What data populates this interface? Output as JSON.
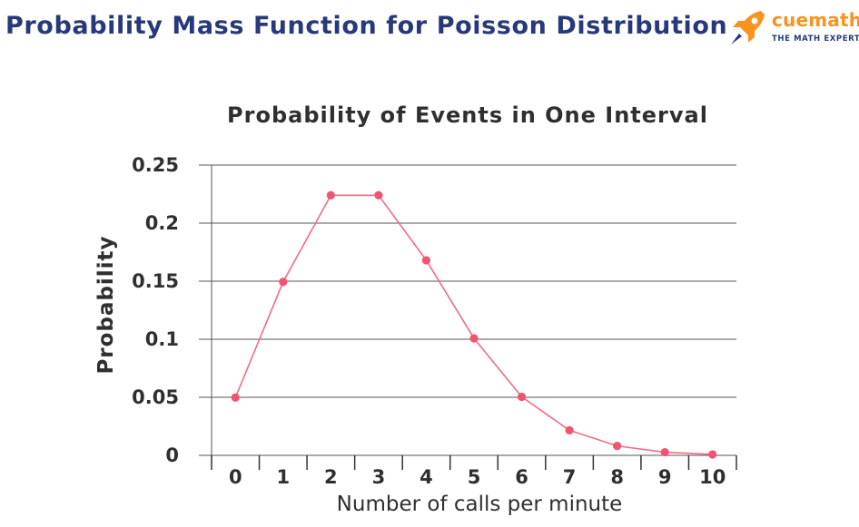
{
  "header": {
    "title": "Probability Mass Function for Poisson Distribution"
  },
  "logo": {
    "brand": "cuemath",
    "tagline": "THE MATH EXPERT",
    "icon": "rocket-icon",
    "brand_color": "#f7931e",
    "tagline_color": "#27397a"
  },
  "chart_data": {
    "type": "line",
    "title": "Probability of Events in One Interval",
    "xlabel": "Number of calls per minute",
    "ylabel": "Probability",
    "x": [
      0,
      1,
      2,
      3,
      4,
      5,
      6,
      7,
      8,
      9,
      10
    ],
    "y": [
      0.0498,
      0.1494,
      0.224,
      0.224,
      0.168,
      0.1008,
      0.0504,
      0.0216,
      0.0081,
      0.0027,
      0.0008
    ],
    "ylim": [
      0,
      0.25
    ],
    "yticks": [
      0,
      0.05,
      0.1,
      0.15,
      0.2,
      0.25
    ],
    "ytick_labels": [
      "0",
      "0.05",
      "0.1",
      "0.15",
      "0.2",
      "0.25"
    ],
    "xtick_labels": [
      "0",
      "1",
      "2",
      "3",
      "4",
      "5",
      "6",
      "7",
      "8",
      "9",
      "10"
    ],
    "grid": true,
    "legend": "none",
    "line_color": "#f26b83",
    "marker_color": "#f2546f"
  }
}
